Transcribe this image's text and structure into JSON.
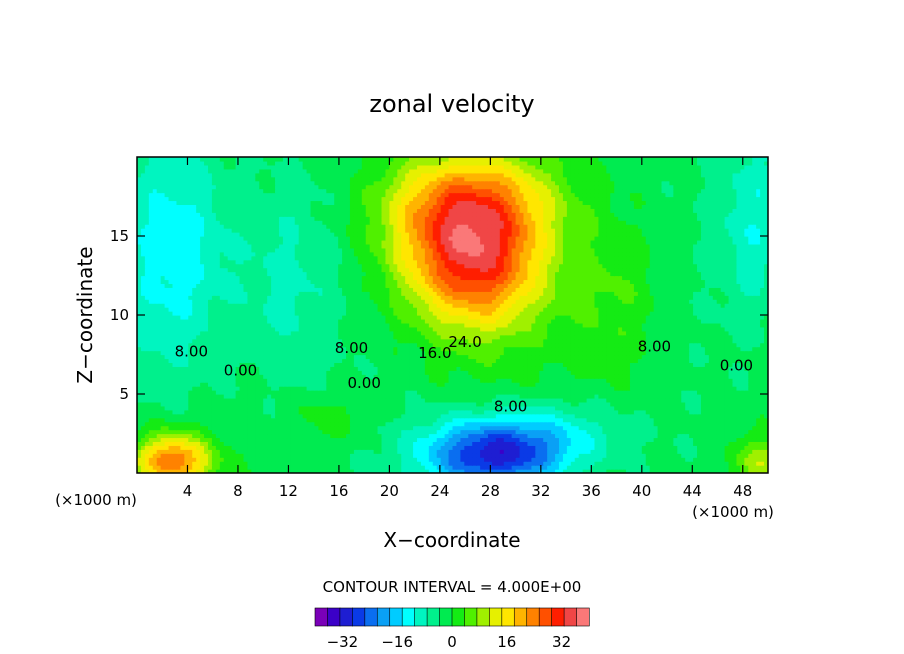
{
  "chart_data": {
    "type": "heatmap",
    "title": "zonal velocity",
    "xlabel": "X−coordinate",
    "ylabel": "Z−coordinate",
    "x_unit": "(×1000 m)",
    "x_unit_right": "(×1000 m)",
    "xlim": [
      0,
      50
    ],
    "ylim": [
      0,
      20
    ],
    "x_ticks": [
      4,
      8,
      12,
      16,
      20,
      24,
      28,
      32,
      36,
      40,
      44,
      48
    ],
    "y_ticks": [
      5,
      10,
      15
    ],
    "contour_interval_text": "CONTOUR INTERVAL = 4.000E+00",
    "contour_interval": 4,
    "contour_labels": [
      {
        "text": "8.00",
        "x": 4.3,
        "z": 7.7
      },
      {
        "text": "0.00",
        "x": 8.2,
        "z": 6.5
      },
      {
        "text": "8.00",
        "x": 17.0,
        "z": 7.9
      },
      {
        "text": "0.00",
        "x": 18.0,
        "z": 5.7
      },
      {
        "text": "16.0",
        "x": 23.6,
        "z": 7.6
      },
      {
        "text": "24.0",
        "x": 26.0,
        "z": 8.3
      },
      {
        "text": "8.00",
        "x": 29.6,
        "z": 4.2
      },
      {
        "text": "8.00",
        "x": 41.0,
        "z": 8.0
      },
      {
        "text": "0.00",
        "x": 47.5,
        "z": 6.8
      }
    ],
    "features": [
      {
        "kind": "max",
        "x": 27.0,
        "z": 14.0,
        "value": 36
      },
      {
        "kind": "max",
        "x": 27.5,
        "z": 11.7,
        "value": 34
      },
      {
        "kind": "min",
        "x": 28.0,
        "z": 1.5,
        "value": -28
      },
      {
        "kind": "max",
        "x": 2.5,
        "z": 0.8,
        "value": 30
      },
      {
        "kind": "min",
        "x": 2.0,
        "z": 15.0,
        "value": -12
      }
    ],
    "colorbar": {
      "min": -40,
      "max": 40,
      "step": 4,
      "tick_labels": [
        "−32",
        "−16",
        "0",
        "16",
        "32"
      ],
      "tick_values": [
        -32,
        -16,
        0,
        16,
        32
      ],
      "colors": [
        "#7a00b8",
        "#3b00c8",
        "#1e1ed2",
        "#0a3ae6",
        "#0a6ef0",
        "#0aa0f5",
        "#00ccff",
        "#00ffff",
        "#00f5c0",
        "#00f08c",
        "#00eb50",
        "#14eb14",
        "#50f000",
        "#a0f000",
        "#e6f000",
        "#ffe600",
        "#ffb400",
        "#ff8200",
        "#ff5000",
        "#ff1e00",
        "#f04646",
        "#fa7878"
      ]
    }
  }
}
